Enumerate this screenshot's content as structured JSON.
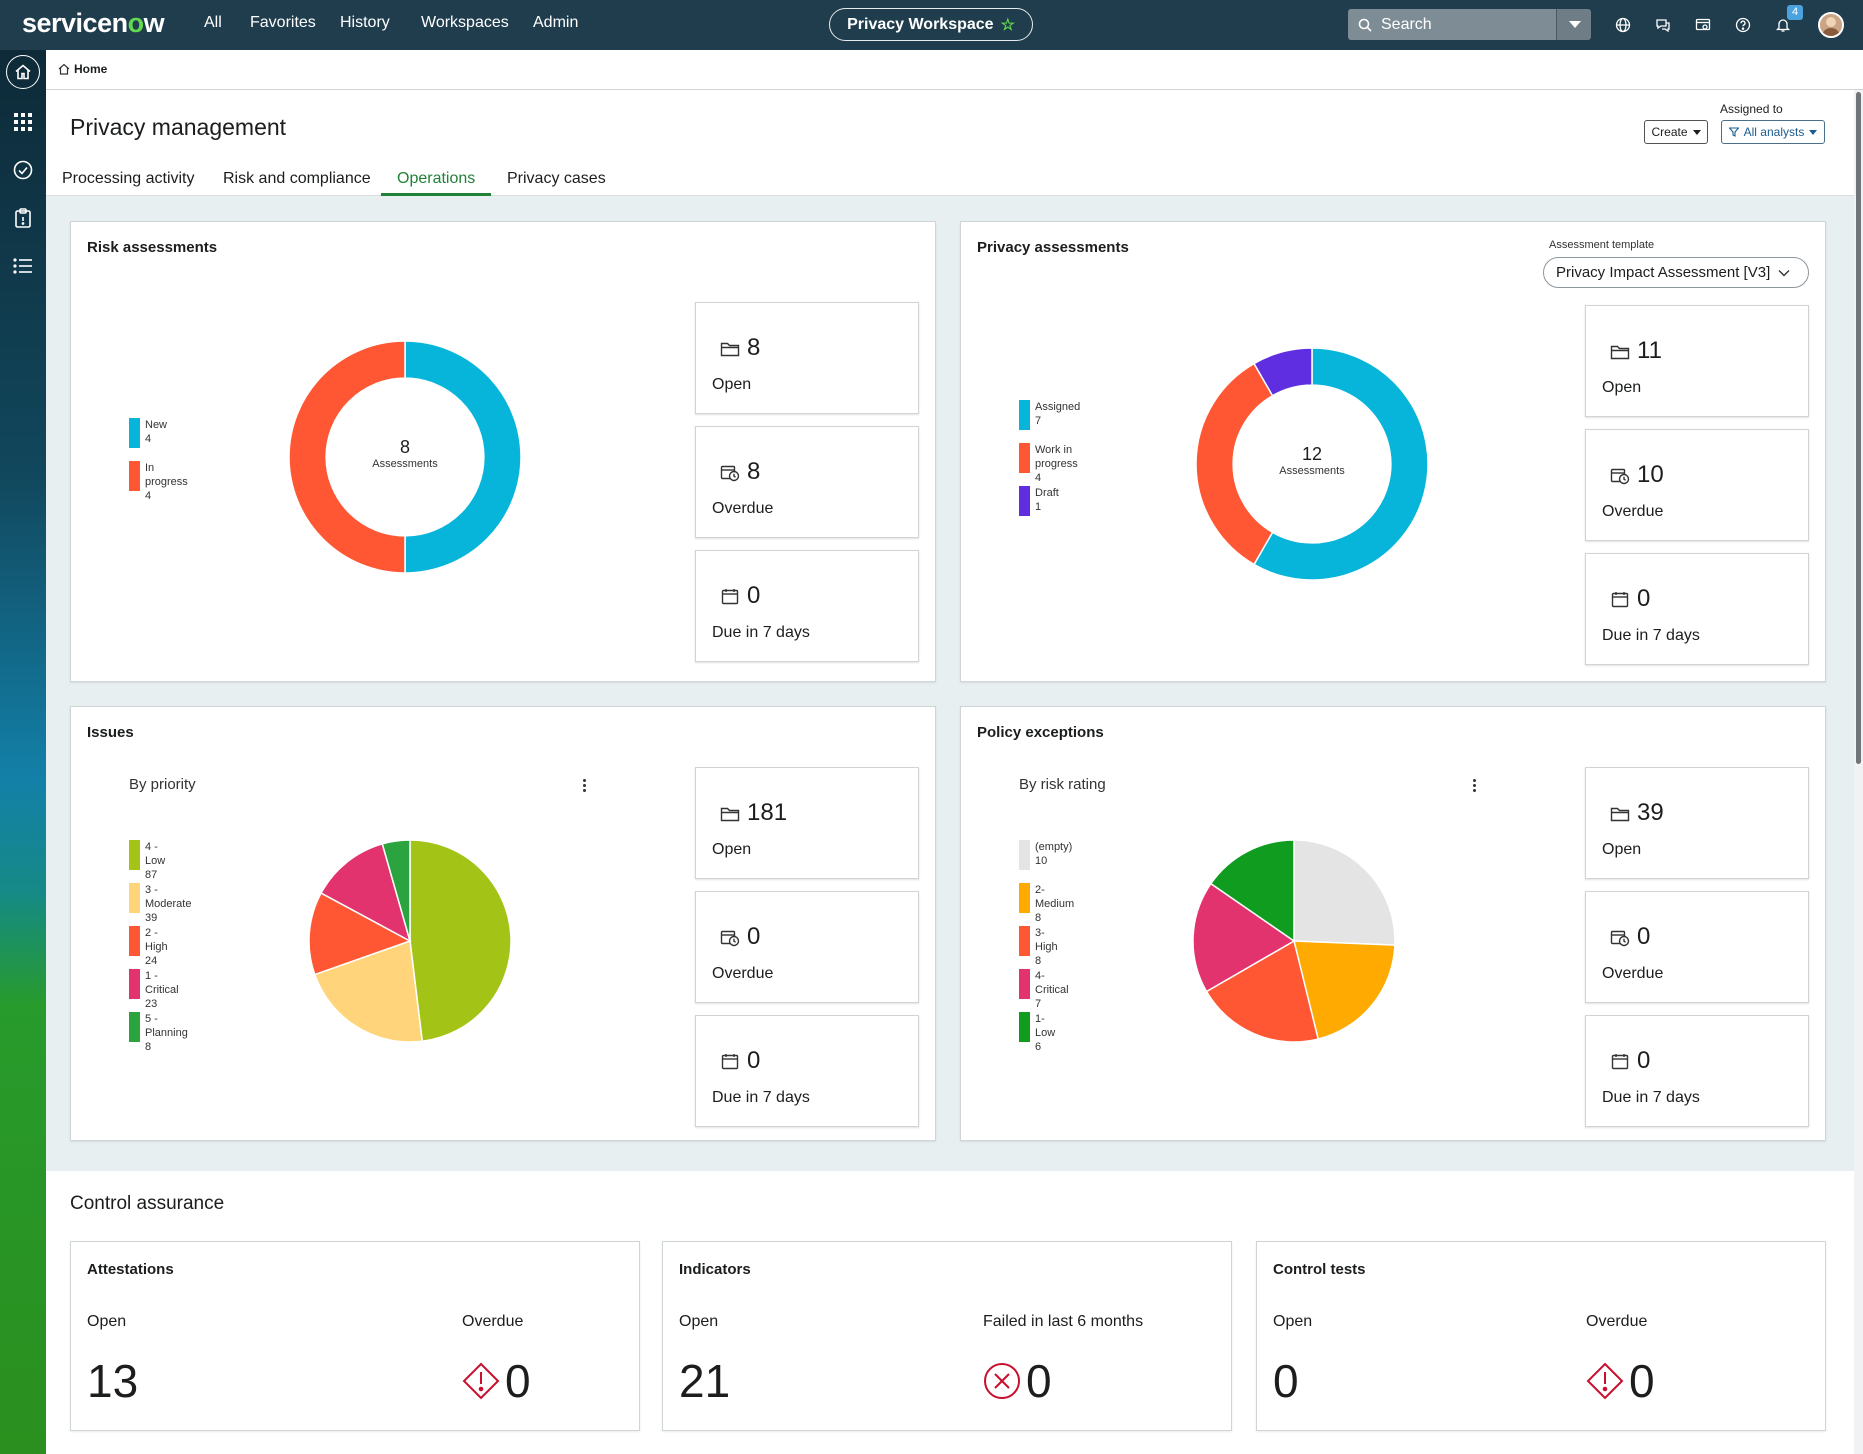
{
  "brand": {
    "name_a": "servicen",
    "name_o": "o",
    "name_b": "w"
  },
  "topnav": {
    "items": [
      "All",
      "Favorites",
      "History",
      "Workspaces",
      "Admin"
    ]
  },
  "workspace": {
    "label": "Privacy Workspace"
  },
  "search": {
    "placeholder": "Search"
  },
  "notifications": {
    "count": "4"
  },
  "icons": {
    "globe": "globe-icon",
    "chat": "chat-icon",
    "scripts": "scripts-icon",
    "help": "help-icon",
    "bell": "bell-icon"
  },
  "breadcrumb": {
    "home": "Home"
  },
  "page": {
    "title": "Privacy management",
    "create": "Create",
    "assigned_label": "Assigned to",
    "assigned_value": "All analysts"
  },
  "tabs": [
    {
      "label": "Processing activity"
    },
    {
      "label": "Risk and compliance"
    },
    {
      "label": "Operations",
      "active": true
    },
    {
      "label": "Privacy cases"
    }
  ],
  "risk": {
    "title": "Risk assessments",
    "total": "8",
    "total_label": "Assessments",
    "legend": [
      {
        "name": "New",
        "value": "4"
      },
      {
        "name": "In progress",
        "value": "4"
      }
    ],
    "stats": [
      {
        "value": "8",
        "label": "Open",
        "icon": "folder-icon"
      },
      {
        "value": "8",
        "label": "Overdue",
        "icon": "calendar-clock-icon"
      },
      {
        "value": "0",
        "label": "Due in 7 days",
        "icon": "calendar-icon"
      }
    ]
  },
  "privacy": {
    "title": "Privacy assessments",
    "template_label": "Assessment template",
    "template_value": "Privacy Impact Assessment [V3]",
    "total": "12",
    "total_label": "Assessments",
    "legend": [
      {
        "name": "Assigned",
        "value": "7"
      },
      {
        "name": "Work in progress",
        "value": "4"
      },
      {
        "name": "Draft",
        "value": "1"
      }
    ],
    "stats": [
      {
        "value": "11",
        "label": "Open"
      },
      {
        "value": "10",
        "label": "Overdue"
      },
      {
        "value": "0",
        "label": "Due in 7 days"
      }
    ]
  },
  "issues": {
    "title": "Issues",
    "subtitle": "By priority",
    "legend": [
      {
        "name": "4 - Low",
        "value": "87"
      },
      {
        "name": "3 - Moderate",
        "value": "39"
      },
      {
        "name": "2 - High",
        "value": "24"
      },
      {
        "name": "1 - Critical",
        "value": "23"
      },
      {
        "name": "5 - Planning",
        "value": "8"
      }
    ],
    "stats": [
      {
        "value": "181",
        "label": "Open"
      },
      {
        "value": "0",
        "label": "Overdue"
      },
      {
        "value": "0",
        "label": "Due in 7 days"
      }
    ]
  },
  "exceptions": {
    "title": "Policy exceptions",
    "subtitle": "By risk rating",
    "legend": [
      {
        "name": "(empty)",
        "value": "10"
      },
      {
        "name": "2-Medium",
        "value": "8"
      },
      {
        "name": "3-High",
        "value": "8"
      },
      {
        "name": "4-Critical",
        "value": "7"
      },
      {
        "name": "1-Low",
        "value": "6"
      }
    ],
    "stats": [
      {
        "value": "39",
        "label": "Open"
      },
      {
        "value": "0",
        "label": "Overdue"
      },
      {
        "value": "0",
        "label": "Due in 7 days"
      }
    ]
  },
  "chart_data": [
    {
      "type": "pie",
      "subtype": "donut",
      "categories": [
        "New",
        "In progress"
      ],
      "values": [
        4,
        4
      ],
      "colors": [
        "#08b5da",
        "#ff5733"
      ],
      "center_value": 8,
      "center_label": "Assessments"
    },
    {
      "type": "pie",
      "subtype": "donut",
      "categories": [
        "Assigned",
        "Work in progress",
        "Draft"
      ],
      "values": [
        7,
        4,
        1
      ],
      "colors": [
        "#08b5da",
        "#ff5733",
        "#5e2ee0"
      ],
      "center_value": 12,
      "center_label": "Assessments"
    },
    {
      "type": "pie",
      "title": "By priority",
      "categories": [
        "4 - Low",
        "3 - Moderate",
        "2 - High",
        "1 - Critical",
        "5 - Planning"
      ],
      "values": [
        87,
        39,
        24,
        23,
        8
      ],
      "colors": [
        "#a3c316",
        "#ffd47a",
        "#ff5733",
        "#e2336e",
        "#2ba33e"
      ]
    },
    {
      "type": "pie",
      "title": "By risk rating",
      "categories": [
        "(empty)",
        "2-Medium",
        "3-High",
        "4-Critical",
        "1-Low"
      ],
      "values": [
        10,
        8,
        8,
        7,
        6
      ],
      "colors": [
        "#e4e4e4",
        "#ffaa00",
        "#ff5733",
        "#e2336e",
        "#109c1f"
      ]
    }
  ],
  "control": {
    "title": "Control assurance",
    "cards": [
      {
        "title": "Attestations",
        "left_label": "Open",
        "left_value": "13",
        "right_label": "Overdue",
        "right_value": "0",
        "icon": "warning-diamond-icon"
      },
      {
        "title": "Indicators",
        "left_label": "Open",
        "left_value": "21",
        "right_label": "Failed in last 6 months",
        "right_value": "0",
        "icon": "error-circle-icon"
      },
      {
        "title": "Control tests",
        "left_label": "Open",
        "left_value": "0",
        "right_label": "Overdue",
        "right_value": "0",
        "icon": "warning-diamond-icon"
      }
    ]
  }
}
